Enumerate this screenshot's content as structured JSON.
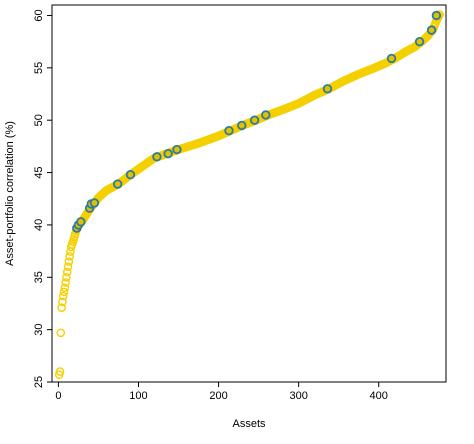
{
  "chart_data": {
    "type": "scatter",
    "xlabel": "Assets",
    "ylabel": "Asset-portfolio correlation (%)",
    "xlim": [
      -8,
      484
    ],
    "ylim": [
      25,
      61
    ],
    "x_ticks": [
      0,
      100,
      200,
      300,
      400
    ],
    "y_ticks": [
      25,
      30,
      35,
      40,
      45,
      50,
      55,
      60
    ],
    "grid": false,
    "legend": "none",
    "colors": {
      "base": "#F5D000",
      "highlight": "#2C7BA0",
      "highlight_fill": "#E0C000"
    },
    "series": [
      {
        "role": "all-assets",
        "curve_knots": [
          [
            1,
            25.7
          ],
          [
            2,
            26.0
          ],
          [
            3,
            29.7
          ],
          [
            4,
            32.1
          ],
          [
            6,
            33.2
          ],
          [
            8,
            34.0
          ],
          [
            10,
            35.0
          ],
          [
            12,
            36.0
          ],
          [
            14,
            37.0
          ],
          [
            16,
            37.9
          ],
          [
            19,
            38.6
          ],
          [
            22,
            39.4
          ],
          [
            25,
            39.9
          ],
          [
            30,
            40.4
          ],
          [
            35,
            41.0
          ],
          [
            40,
            41.6
          ],
          [
            45,
            42.1
          ],
          [
            50,
            42.6
          ],
          [
            60,
            43.3
          ],
          [
            75,
            43.9
          ],
          [
            90,
            44.8
          ],
          [
            105,
            45.6
          ],
          [
            120,
            46.4
          ],
          [
            135,
            46.8
          ],
          [
            150,
            47.2
          ],
          [
            175,
            47.8
          ],
          [
            200,
            48.5
          ],
          [
            215,
            49.0
          ],
          [
            230,
            49.5
          ],
          [
            250,
            50.1
          ],
          [
            262,
            50.5
          ],
          [
            280,
            51.0
          ],
          [
            300,
            51.6
          ],
          [
            320,
            52.4
          ],
          [
            338,
            53.0
          ],
          [
            355,
            53.7
          ],
          [
            375,
            54.4
          ],
          [
            395,
            55.0
          ],
          [
            410,
            55.5
          ],
          [
            420,
            55.9
          ],
          [
            435,
            56.6
          ],
          [
            445,
            57.0
          ],
          [
            455,
            57.6
          ],
          [
            462,
            58.1
          ],
          [
            468,
            58.7
          ],
          [
            472,
            59.5
          ],
          [
            476,
            60.1
          ]
        ],
        "n_points": 476
      },
      {
        "role": "highlighted",
        "points": [
          [
            23,
            39.7
          ],
          [
            25,
            40.0
          ],
          [
            28,
            40.3
          ],
          [
            39,
            41.6
          ],
          [
            41,
            42.0
          ],
          [
            45,
            42.1
          ],
          [
            74,
            43.9
          ],
          [
            90,
            44.8
          ],
          [
            123,
            46.5
          ],
          [
            137,
            46.8
          ],
          [
            148,
            47.2
          ],
          [
            213,
            49.0
          ],
          [
            229,
            49.5
          ],
          [
            245,
            50.0
          ],
          [
            259,
            50.5
          ],
          [
            336,
            53.0
          ],
          [
            416,
            55.9
          ],
          [
            451,
            57.5
          ],
          [
            466,
            58.6
          ],
          [
            472,
            60.0
          ]
        ]
      }
    ]
  }
}
